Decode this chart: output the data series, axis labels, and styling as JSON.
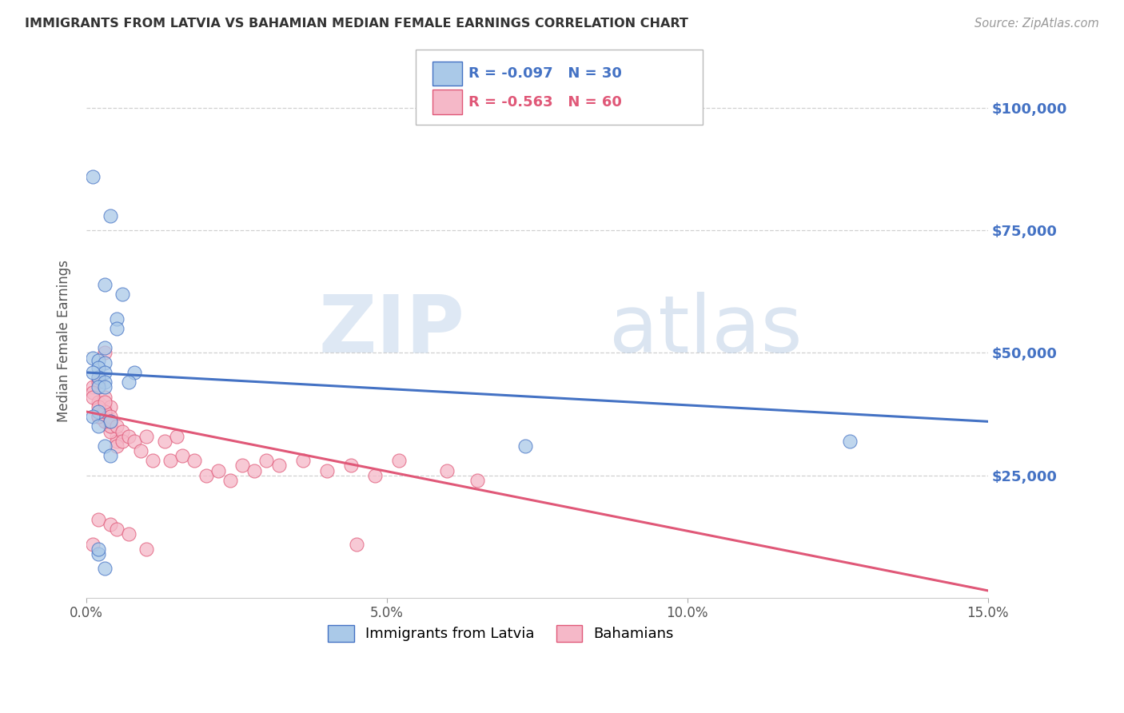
{
  "title": "IMMIGRANTS FROM LATVIA VS BAHAMIAN MEDIAN FEMALE EARNINGS CORRELATION CHART",
  "source": "Source: ZipAtlas.com",
  "ylabel": "Median Female Earnings",
  "right_ytick_labels": [
    "$100,000",
    "$75,000",
    "$50,000",
    "$25,000"
  ],
  "right_ytick_values": [
    100000,
    75000,
    50000,
    25000
  ],
  "xlim": [
    0.0,
    0.15
  ],
  "ylim": [
    0,
    105000
  ],
  "xtick_values": [
    0.0,
    0.05,
    0.1,
    0.15
  ],
  "xtick_labels": [
    "0.0%",
    "5.0%",
    "10.0%",
    "15.0%"
  ],
  "series1_color": "#aac9e8",
  "series2_color": "#f5b8c8",
  "line1_color": "#4472c4",
  "line2_color": "#e05878",
  "series1_label": "Immigrants from Latvia",
  "series2_label": "Bahamians",
  "R1": -0.097,
  "N1": 30,
  "R2": -0.563,
  "N2": 60,
  "watermark_zip": "ZIP",
  "watermark_atlas": "atlas",
  "bg_color": "#ffffff",
  "grid_color": "#d0d0d0",
  "title_color": "#333333",
  "axis_label_color": "#555555",
  "right_axis_color": "#4472c4",
  "scatter1_x": [
    0.001,
    0.003,
    0.002,
    0.003,
    0.002,
    0.003,
    0.002,
    0.003,
    0.002,
    0.002,
    0.001,
    0.004,
    0.002,
    0.003,
    0.004,
    0.005,
    0.006,
    0.003,
    0.005,
    0.008,
    0.002,
    0.002,
    0.004,
    0.001,
    0.001,
    0.007,
    0.003,
    0.127,
    0.073,
    0.003
  ],
  "scatter1_y": [
    49000,
    51000,
    48500,
    48000,
    47000,
    46000,
    45000,
    44000,
    43000,
    38000,
    37000,
    36000,
    35000,
    31000,
    29000,
    57000,
    62000,
    64000,
    55000,
    46000,
    9000,
    10000,
    78000,
    86000,
    46000,
    44000,
    43000,
    32000,
    31000,
    6000
  ],
  "scatter2_x": [
    0.001,
    0.002,
    0.003,
    0.002,
    0.001,
    0.002,
    0.003,
    0.003,
    0.004,
    0.003,
    0.002,
    0.003,
    0.004,
    0.005,
    0.005,
    0.005,
    0.004,
    0.004,
    0.003,
    0.002,
    0.003,
    0.004,
    0.004,
    0.005,
    0.006,
    0.006,
    0.007,
    0.008,
    0.009,
    0.01,
    0.011,
    0.013,
    0.014,
    0.015,
    0.016,
    0.018,
    0.02,
    0.022,
    0.024,
    0.026,
    0.028,
    0.03,
    0.032,
    0.036,
    0.04,
    0.044,
    0.048,
    0.052,
    0.06,
    0.065,
    0.001,
    0.002,
    0.003,
    0.002,
    0.004,
    0.005,
    0.007,
    0.045,
    0.001,
    0.01
  ],
  "scatter2_y": [
    43000,
    44000,
    50000,
    45000,
    42000,
    40000,
    39000,
    41000,
    39000,
    38000,
    37000,
    36000,
    35000,
    33000,
    32000,
    31000,
    34000,
    35000,
    36000,
    37000,
    38000,
    37000,
    36000,
    35000,
    34000,
    32000,
    33000,
    32000,
    30000,
    33000,
    28000,
    32000,
    28000,
    33000,
    29000,
    28000,
    25000,
    26000,
    24000,
    27000,
    26000,
    28000,
    27000,
    28000,
    26000,
    27000,
    25000,
    28000,
    26000,
    24000,
    41000,
    39000,
    40000,
    16000,
    15000,
    14000,
    13000,
    11000,
    11000,
    10000
  ],
  "line1_x0": 0.0,
  "line1_y0": 46000,
  "line1_x1": 0.15,
  "line1_y1": 36000,
  "line2_x0": 0.0,
  "line2_y0": 38000,
  "line2_x1": 0.15,
  "line2_y1": 1500
}
